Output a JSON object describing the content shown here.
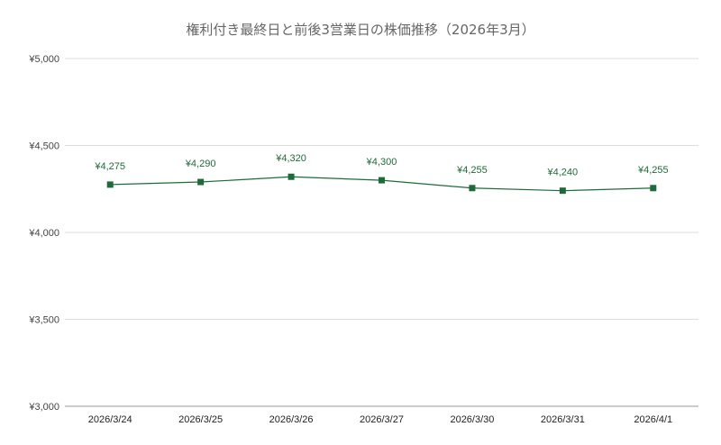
{
  "chart_data": {
    "type": "line",
    "title": "権利付き最終日と前後3営業日の株価推移（2026年3月）",
    "xlabel": "",
    "ylabel": "",
    "categories": [
      "2026/3/24",
      "2026/3/25",
      "2026/3/26",
      "2026/3/27",
      "2026/3/30",
      "2026/3/31",
      "2026/4/1"
    ],
    "series": [
      {
        "values": [
          4275,
          4290,
          4320,
          4300,
          4255,
          4240,
          4255
        ],
        "labels": [
          "¥4,275",
          "¥4,290",
          "¥4,320",
          "¥4,300",
          "¥4,255",
          "¥4,240",
          "¥4,255"
        ],
        "color": "#1e6b3a",
        "marker": "square"
      }
    ],
    "ylim": [
      3000,
      5000
    ],
    "yticks": [
      3000,
      3500,
      4000,
      4500,
      5000
    ],
    "ytick_labels": [
      "¥3,000",
      "¥3,500",
      "¥4,000",
      "¥4,500",
      "¥5,000"
    ],
    "grid": "horizontal",
    "gridColor": "#dddddd"
  }
}
